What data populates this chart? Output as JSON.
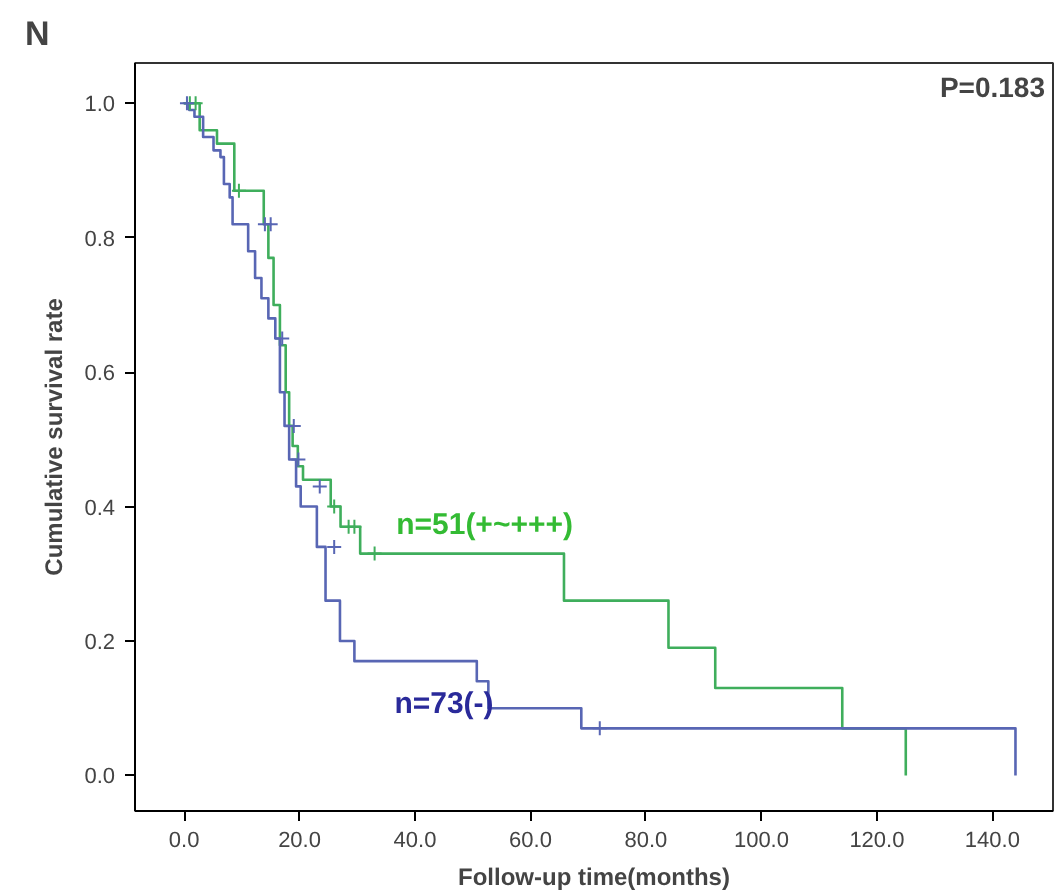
{
  "chart_data": {
    "type": "step",
    "title": "N",
    "xlabel": "Follow-up time(months)",
    "ylabel": "Cumulative survival rate",
    "xlim": [
      -8.5,
      150.5
    ],
    "ylim": [
      -0.053,
      1.06
    ],
    "xticks": [
      {
        "value": 0,
        "label": "0.0"
      },
      {
        "value": 20,
        "label": "20.0"
      },
      {
        "value": 40,
        "label": "40.0"
      },
      {
        "value": 60,
        "label": "60.0"
      },
      {
        "value": 80,
        "label": "80.0"
      },
      {
        "value": 100,
        "label": "100.0"
      },
      {
        "value": 120,
        "label": "120.0"
      },
      {
        "value": 140,
        "label": "140.0"
      }
    ],
    "yticks": [
      {
        "value": 0,
        "label": "0.0"
      },
      {
        "value": 0.2,
        "label": "0.2"
      },
      {
        "value": 0.4,
        "label": "0.4"
      },
      {
        "value": 0.6,
        "label": "0.6"
      },
      {
        "value": 0.8,
        "label": "0.8"
      },
      {
        "value": 1.0,
        "label": "1.0"
      }
    ],
    "grid": false,
    "legend": false,
    "series": [
      {
        "name": "n=51(+~+++)",
        "color": "#3fae5c",
        "x": [
          0,
          2.7,
          5.7,
          8.7,
          13.8,
          14.6,
          15.5,
          16.6,
          17.6,
          18.2,
          18.8,
          19.7,
          20.6,
          25.4,
          27.1,
          30.5,
          65.8,
          83.9,
          92,
          114,
          125
        ],
        "values": [
          1.0,
          0.96,
          0.94,
          0.87,
          0.82,
          0.77,
          0.7,
          0.64,
          0.57,
          0.52,
          0.49,
          0.46,
          0.44,
          0.4,
          0.37,
          0.33,
          0.26,
          0.19,
          0.13,
          0.07,
          0
        ]
      },
      {
        "name": "n=73(-)",
        "color": "#5866b4",
        "x": [
          0,
          0.9,
          1.8,
          3.3,
          5.1,
          6.3,
          6.9,
          7.9,
          8.4,
          11.1,
          12.3,
          13.4,
          14.6,
          15.8,
          16.6,
          17.4,
          18.2,
          19.4,
          20.2,
          23,
          24.5,
          27,
          29.5,
          50.7,
          52.7,
          68.8,
          144
        ],
        "values": [
          1.0,
          0.99,
          0.98,
          0.95,
          0.93,
          0.92,
          0.88,
          0.86,
          0.82,
          0.78,
          0.74,
          0.71,
          0.68,
          0.65,
          0.57,
          0.52,
          0.47,
          0.43,
          0.4,
          0.34,
          0.26,
          0.2,
          0.17,
          0.14,
          0.1,
          0.07,
          0
        ]
      },
      {
        "type": "scatter",
        "marker": "cross",
        "color": "#3fae5c",
        "x": [
          1,
          2,
          9.5,
          26,
          28.5,
          29.5,
          33
        ],
        "values": [
          1.0,
          1.0,
          0.87,
          0.4,
          0.37,
          0.37,
          0.33
        ]
      },
      {
        "type": "scatter",
        "marker": "cross",
        "color": "#5866b4",
        "x": [
          0.5,
          14,
          15,
          17,
          19,
          19.8,
          23.5,
          26,
          72
        ],
        "values": [
          1.0,
          0.82,
          0.82,
          0.65,
          0.52,
          0.47,
          0.43,
          0.34,
          0.07
        ]
      }
    ],
    "annotations": [
      "P=0.183"
    ]
  }
}
